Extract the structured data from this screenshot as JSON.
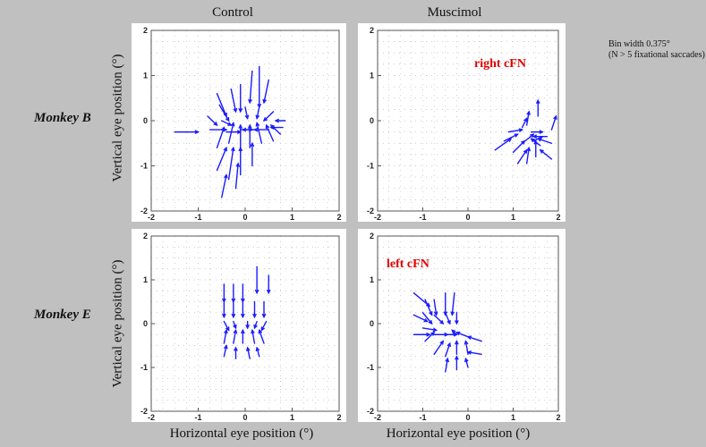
{
  "column_titles": [
    "Control",
    "Muscimol"
  ],
  "row_labels": [
    "Monkey B",
    "Monkey E"
  ],
  "ylabel": "Vertical eye position (°)",
  "xlabel": "Horizontal eye position (°)",
  "note": {
    "line1": "Bin width 0.375°",
    "line2": "(N > 5 fixational saccades)"
  },
  "colors": {
    "arrow": "#1a1aff",
    "label": "#e00000",
    "background": "#c0c0c0"
  },
  "chart_data": [
    {
      "type": "quiver",
      "panel": "Monkey B - Control",
      "xlim": [
        -2,
        2
      ],
      "ylim": [
        -2,
        2
      ],
      "xticks": [
        "-2",
        "-1",
        "0",
        "1",
        "2"
      ],
      "yticks": [
        "-2",
        "-1",
        "0",
        "1",
        "2"
      ],
      "label": "",
      "vectors": [
        [
          -1.5,
          -0.25,
          0.5,
          0
        ],
        [
          -0.75,
          -0.2,
          0.35,
          0
        ],
        [
          -0.4,
          -0.25,
          0.3,
          0
        ],
        [
          -0.1,
          -0.2,
          0.25,
          0
        ],
        [
          0.2,
          -0.2,
          -0.25,
          0
        ],
        [
          0.5,
          -0.2,
          -0.3,
          0
        ],
        [
          0.8,
          -0.15,
          -0.25,
          0
        ],
        [
          -0.6,
          0.6,
          0.2,
          -0.5
        ],
        [
          -0.55,
          0.35,
          0.2,
          -0.35
        ],
        [
          -0.3,
          0.7,
          0.1,
          -0.5
        ],
        [
          -0.1,
          0.8,
          0,
          -0.6
        ],
        [
          0.15,
          1.1,
          -0.05,
          -0.7
        ],
        [
          0.3,
          1.2,
          0,
          -0.9
        ],
        [
          0.5,
          0.9,
          -0.1,
          -0.5
        ],
        [
          -0.8,
          0.1,
          0.2,
          -0.2
        ],
        [
          -0.5,
          0,
          0.2,
          -0.1
        ],
        [
          0.6,
          0.2,
          -0.2,
          -0.2
        ],
        [
          0.85,
          0,
          -0.2,
          0
        ],
        [
          -0.6,
          -0.6,
          0.15,
          0.45
        ],
        [
          -0.35,
          -0.5,
          0.1,
          0.45
        ],
        [
          -0.1,
          -0.7,
          0,
          0.6
        ],
        [
          0.1,
          -0.6,
          0,
          0.5
        ],
        [
          0.35,
          -0.5,
          -0.1,
          0.45
        ],
        [
          0.6,
          -0.45,
          -0.15,
          0.35
        ],
        [
          0.75,
          -0.3,
          -0.2,
          0.2
        ],
        [
          -0.6,
          -1.1,
          0.2,
          0.5
        ],
        [
          -0.35,
          -1.3,
          0.1,
          0.7
        ],
        [
          -0.1,
          -1.2,
          0,
          0.6
        ],
        [
          0.15,
          -1.0,
          0,
          0.5
        ],
        [
          -0.5,
          -1.7,
          0.1,
          0.5
        ],
        [
          -0.2,
          -1.5,
          0.05,
          0.55
        ],
        [
          0.3,
          0.3,
          -0.05,
          -0.25
        ],
        [
          0,
          0.3,
          0.05,
          -0.25
        ]
      ]
    },
    {
      "type": "quiver",
      "panel": "Monkey B - Muscimol",
      "xlim": [
        -2,
        2
      ],
      "ylim": [
        -2,
        2
      ],
      "xticks": [
        "-2",
        "-1",
        "0",
        "1",
        "2"
      ],
      "yticks": [
        "-2",
        "-1",
        "0",
        "1",
        "2"
      ],
      "label": "right cFN",
      "vectors": [
        [
          0.6,
          -0.65,
          0.35,
          0.25
        ],
        [
          0.8,
          -0.45,
          0.3,
          0.15
        ],
        [
          0.9,
          -0.25,
          0.3,
          0.05
        ],
        [
          1.0,
          -0.7,
          0.25,
          0.25
        ],
        [
          1.2,
          -0.5,
          0.25,
          0.2
        ],
        [
          1.3,
          -0.1,
          0.05,
          0.3
        ],
        [
          1.4,
          -0.25,
          0.25,
          0
        ],
        [
          1.55,
          0.1,
          0,
          0.35
        ],
        [
          1.75,
          -0.35,
          -0.3,
          0
        ],
        [
          1.85,
          -0.2,
          0.1,
          0.3
        ],
        [
          1.85,
          -0.5,
          -0.3,
          0.1
        ],
        [
          1.85,
          -0.85,
          -0.25,
          0.2
        ],
        [
          1.1,
          -0.95,
          0.2,
          0.3
        ],
        [
          1.3,
          -0.95,
          0.05,
          0.35
        ],
        [
          1.5,
          -0.8,
          0,
          0.35
        ],
        [
          1.6,
          -0.55,
          -0.2,
          0.15
        ],
        [
          1.2,
          -0.15,
          0.1,
          0.2
        ],
        [
          1.45,
          -0.45,
          0.2,
          0.1
        ]
      ]
    },
    {
      "type": "quiver",
      "panel": "Monkey E - Control",
      "xlim": [
        -2,
        2
      ],
      "ylim": [
        -2,
        2
      ],
      "xticks": [
        "-2",
        "-1",
        "0",
        "1",
        "2"
      ],
      "yticks": [
        "-2",
        "-1",
        "0",
        "1",
        "2"
      ],
      "label": "",
      "vectors": [
        [
          -0.45,
          0.9,
          0,
          -0.4
        ],
        [
          -0.25,
          0.9,
          0,
          -0.4
        ],
        [
          -0.05,
          0.9,
          0,
          -0.4
        ],
        [
          0.25,
          1.3,
          0,
          -0.6
        ],
        [
          0.5,
          1.1,
          0,
          -0.4
        ],
        [
          -0.45,
          0.5,
          0,
          -0.35
        ],
        [
          -0.25,
          0.5,
          0,
          -0.35
        ],
        [
          -0.05,
          0.5,
          0,
          -0.35
        ],
        [
          0.2,
          0.5,
          0,
          -0.35
        ],
        [
          0.4,
          0.5,
          0,
          -0.35
        ],
        [
          -0.45,
          0.05,
          0.1,
          -0.2
        ],
        [
          -0.25,
          0.05,
          0.05,
          -0.15
        ],
        [
          0.05,
          0.05,
          0,
          -0.15
        ],
        [
          0.25,
          0.05,
          -0.05,
          -0.15
        ],
        [
          0.45,
          0.05,
          -0.1,
          -0.2
        ],
        [
          -0.45,
          -0.45,
          0.05,
          0.3
        ],
        [
          -0.25,
          -0.45,
          0.05,
          0.3
        ],
        [
          -0.05,
          -0.45,
          0,
          0.3
        ],
        [
          0.2,
          -0.45,
          -0.05,
          0.3
        ],
        [
          0.4,
          -0.45,
          -0.1,
          0.3
        ],
        [
          -0.45,
          -0.75,
          0.05,
          0.25
        ],
        [
          -0.2,
          -0.8,
          0,
          0.25
        ],
        [
          0.1,
          -0.8,
          -0.05,
          0.25
        ],
        [
          0.3,
          -0.75,
          -0.05,
          0.2
        ]
      ]
    },
    {
      "type": "quiver",
      "panel": "Monkey E - Muscimol",
      "xlim": [
        -2,
        2
      ],
      "ylim": [
        -2,
        2
      ],
      "xticks": [
        "-2",
        "-1",
        "0",
        "1",
        "2"
      ],
      "yticks": [
        "-2",
        "-1",
        "0",
        "1",
        "2"
      ],
      "label": "left cFN",
      "vectors": [
        [
          -1.2,
          0.7,
          0.35,
          -0.3
        ],
        [
          -0.95,
          0.55,
          0.15,
          -0.35
        ],
        [
          -0.75,
          0.55,
          0.05,
          -0.35
        ],
        [
          -0.5,
          0.7,
          0,
          -0.5
        ],
        [
          -0.3,
          0.7,
          -0.05,
          -0.5
        ],
        [
          -1.2,
          0.2,
          0.3,
          -0.15
        ],
        [
          -1.0,
          0.25,
          0.2,
          -0.25
        ],
        [
          -0.75,
          0.2,
          0.2,
          -0.2
        ],
        [
          -0.5,
          0.25,
          0.1,
          -0.25
        ],
        [
          -0.25,
          0.25,
          0,
          -0.25
        ],
        [
          -1.2,
          -0.25,
          0.35,
          0
        ],
        [
          -1.0,
          -0.1,
          0.3,
          -0.05
        ],
        [
          -0.75,
          -0.25,
          0.3,
          0
        ],
        [
          -0.5,
          -0.25,
          0.25,
          0
        ],
        [
          -0.25,
          -0.25,
          -0.1,
          0.1
        ],
        [
          0.0,
          -0.3,
          -0.25,
          0.1
        ],
        [
          0.3,
          -0.4,
          -0.3,
          0.1
        ],
        [
          -0.95,
          -0.4,
          0.2,
          0.2
        ],
        [
          -0.75,
          -0.7,
          0.2,
          0.3
        ],
        [
          -0.5,
          -0.75,
          0.1,
          0.3
        ],
        [
          -0.25,
          -0.7,
          0,
          0.3
        ],
        [
          0.0,
          -0.7,
          -0.05,
          0.3
        ],
        [
          0.3,
          -0.7,
          -0.3,
          0.05
        ],
        [
          -0.5,
          -1.1,
          0.05,
          0.3
        ],
        [
          -0.25,
          -1.05,
          0,
          0.3
        ],
        [
          0.0,
          -1.0,
          -0.05,
          0.2
        ]
      ]
    }
  ]
}
